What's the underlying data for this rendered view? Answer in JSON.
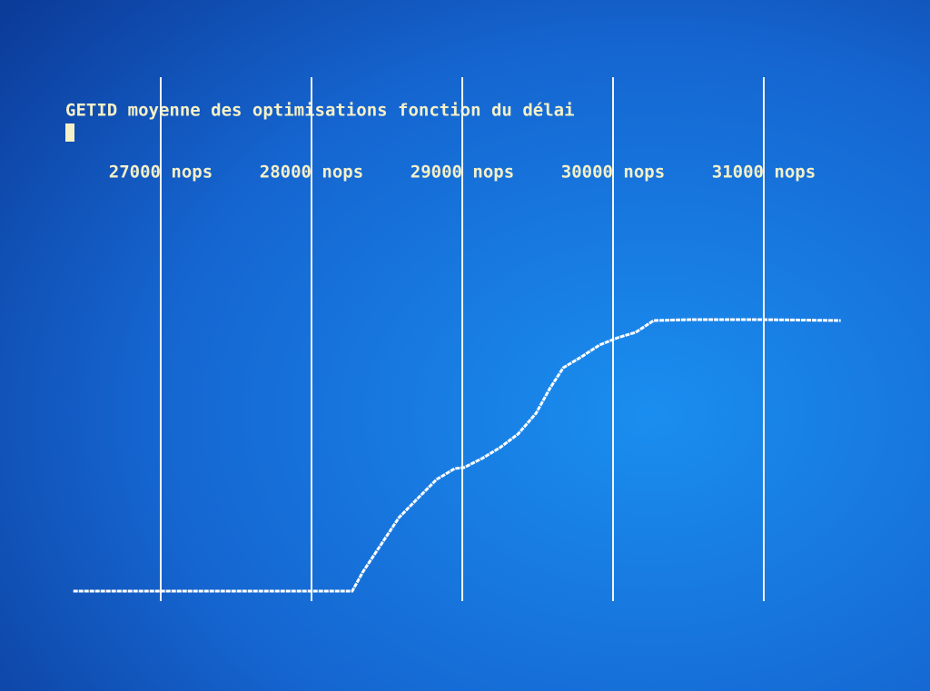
{
  "chart_data": {
    "type": "line",
    "title": "GETID moyenne des optimisations fonction du délai",
    "x": [
      26420,
      28270,
      28340,
      28460,
      28580,
      28710,
      28830,
      28950,
      29010,
      29130,
      29250,
      29370,
      29490,
      29580,
      29670,
      29790,
      29910,
      30030,
      30150,
      30270,
      30510,
      30990,
      31510
    ],
    "series": [
      {
        "color": "#ffffff",
        "values": [
          0,
          0,
          21,
          51,
          81,
          103,
          123,
          135,
          136,
          146,
          158,
          173,
          196,
          223,
          246,
          258,
          271,
          279,
          285,
          298,
          299,
          299,
          298
        ]
      }
    ],
    "xlim": [
      26000,
      32000
    ],
    "xticks": [
      {
        "value": 27000,
        "label": "27000 nops"
      },
      {
        "value": 28000,
        "label": "28000 nops"
      },
      {
        "value": 29000,
        "label": "29000 nops"
      },
      {
        "value": 30000,
        "label": "30000 nops"
      },
      {
        "value": 31000,
        "label": "31000 nops"
      }
    ],
    "ylim": [
      0,
      560
    ],
    "grid": true
  }
}
